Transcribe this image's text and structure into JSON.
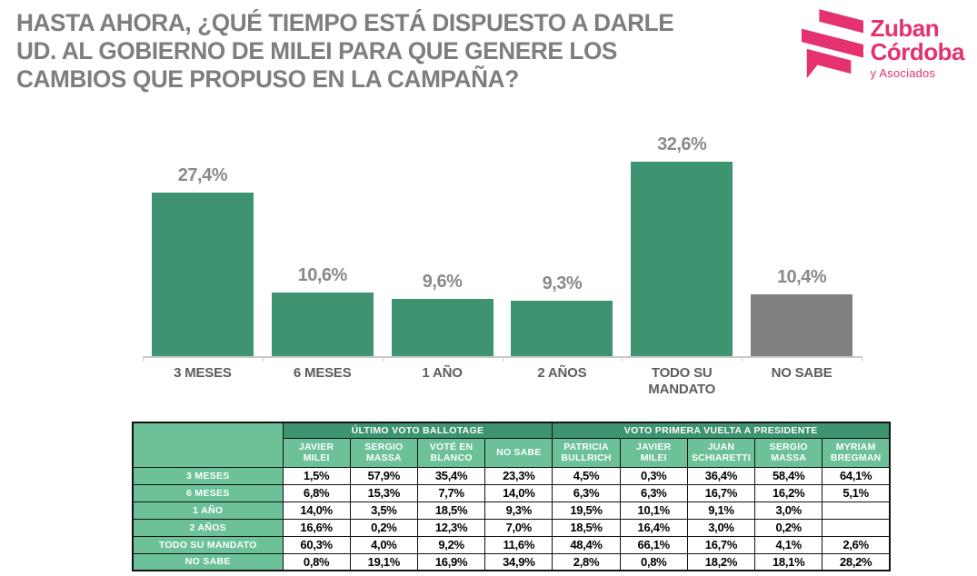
{
  "page": {
    "background": "#ffffff"
  },
  "header": {
    "title_lines": [
      "HASTA AHORA, ¿QUÉ TIEMPO ESTÁ DISPUESTO A DARLE",
      "UD. AL GOBIERNO DE MILEI PARA QUE GENERE LOS",
      "CAMBIOS QUE PROPUSO EN LA CAMPAÑA?"
    ],
    "logo": {
      "name": "Zuban Córdoba y Asociados",
      "line1": "Zuban",
      "line2": "Córdoba",
      "line3": "y Asociados",
      "color": "#e5316f"
    }
  },
  "chart_data": {
    "type": "bar",
    "categories": [
      "3 MESES",
      "6 MESES",
      "1 AÑO",
      "2 AÑOS",
      "TODO SU MANDATO",
      "NO SABE"
    ],
    "values": [
      27.4,
      10.6,
      9.6,
      9.3,
      32.6,
      10.4
    ],
    "value_labels": [
      "27,4%",
      "10,6%",
      "9,6%",
      "9,3%",
      "32,6%",
      "10,4%"
    ],
    "bar_colors": [
      "#3e9471",
      "#3e9471",
      "#3e9471",
      "#3e9471",
      "#3e9471",
      "#7f7f7f"
    ],
    "title": "",
    "xlabel": "",
    "ylabel": "",
    "ylim": [
      0,
      35
    ],
    "grid": false,
    "legend": false,
    "axis_color": "#c9c9c9",
    "value_label_color": "#8a8a8a",
    "category_label_color": "#5d5d5d"
  },
  "table": {
    "corner_label": "",
    "group_headers": [
      {
        "label": "ÚLTIMO VOTO BALLOTAGE",
        "span": 4
      },
      {
        "label": "VOTO PRIMERA VUELTA A PRESIDENTE",
        "span": 5
      }
    ],
    "column_headers": [
      "JAVIER MILEI",
      "SERGIO MASSA",
      "VOTÉ EN BLANCO",
      "NO SABE",
      "PATRICIA BULLRICH",
      "JAVIER MILEI",
      "JUAN SCHIARETTI",
      "SERGIO MASSA",
      "MYRIAM BREGMAN"
    ],
    "rows": [
      {
        "label": "3 MESES",
        "cells": [
          "1,5%",
          "57,9%",
          "35,4%",
          "23,3%",
          "4,5%",
          "0,3%",
          "36,4%",
          "58,4%",
          "64,1%"
        ]
      },
      {
        "label": "6 MESES",
        "cells": [
          "6,8%",
          "15,3%",
          "7,7%",
          "14,0%",
          "6,3%",
          "6,3%",
          "16,7%",
          "16,2%",
          "5,1%"
        ]
      },
      {
        "label": "1 AÑO",
        "cells": [
          "14,0%",
          "3,5%",
          "18,5%",
          "9,3%",
          "19,5%",
          "10,1%",
          "9,1%",
          "3,0%",
          ""
        ]
      },
      {
        "label": "2 AÑOS",
        "cells": [
          "16,6%",
          "0,2%",
          "12,3%",
          "7,0%",
          "18,5%",
          "16,4%",
          "3,0%",
          "0,2%",
          ""
        ]
      },
      {
        "label": "TODO SU MANDATO",
        "cells": [
          "60,3%",
          "4,0%",
          "9,2%",
          "11,6%",
          "48,4%",
          "66,1%",
          "16,7%",
          "4,1%",
          "2,6%"
        ]
      },
      {
        "label": "NO SABE",
        "cells": [
          "0,8%",
          "19,1%",
          "16,9%",
          "34,9%",
          "2,8%",
          "0,8%",
          "18,2%",
          "18,1%",
          "28,2%"
        ]
      }
    ],
    "colors": {
      "group_header_bg": "#3e9471",
      "column_header_bg": "#6cc198",
      "row_label_bg": "#6cc198",
      "header_text": "#ffffff",
      "cell_text": "#000000",
      "border": "#111111"
    }
  }
}
